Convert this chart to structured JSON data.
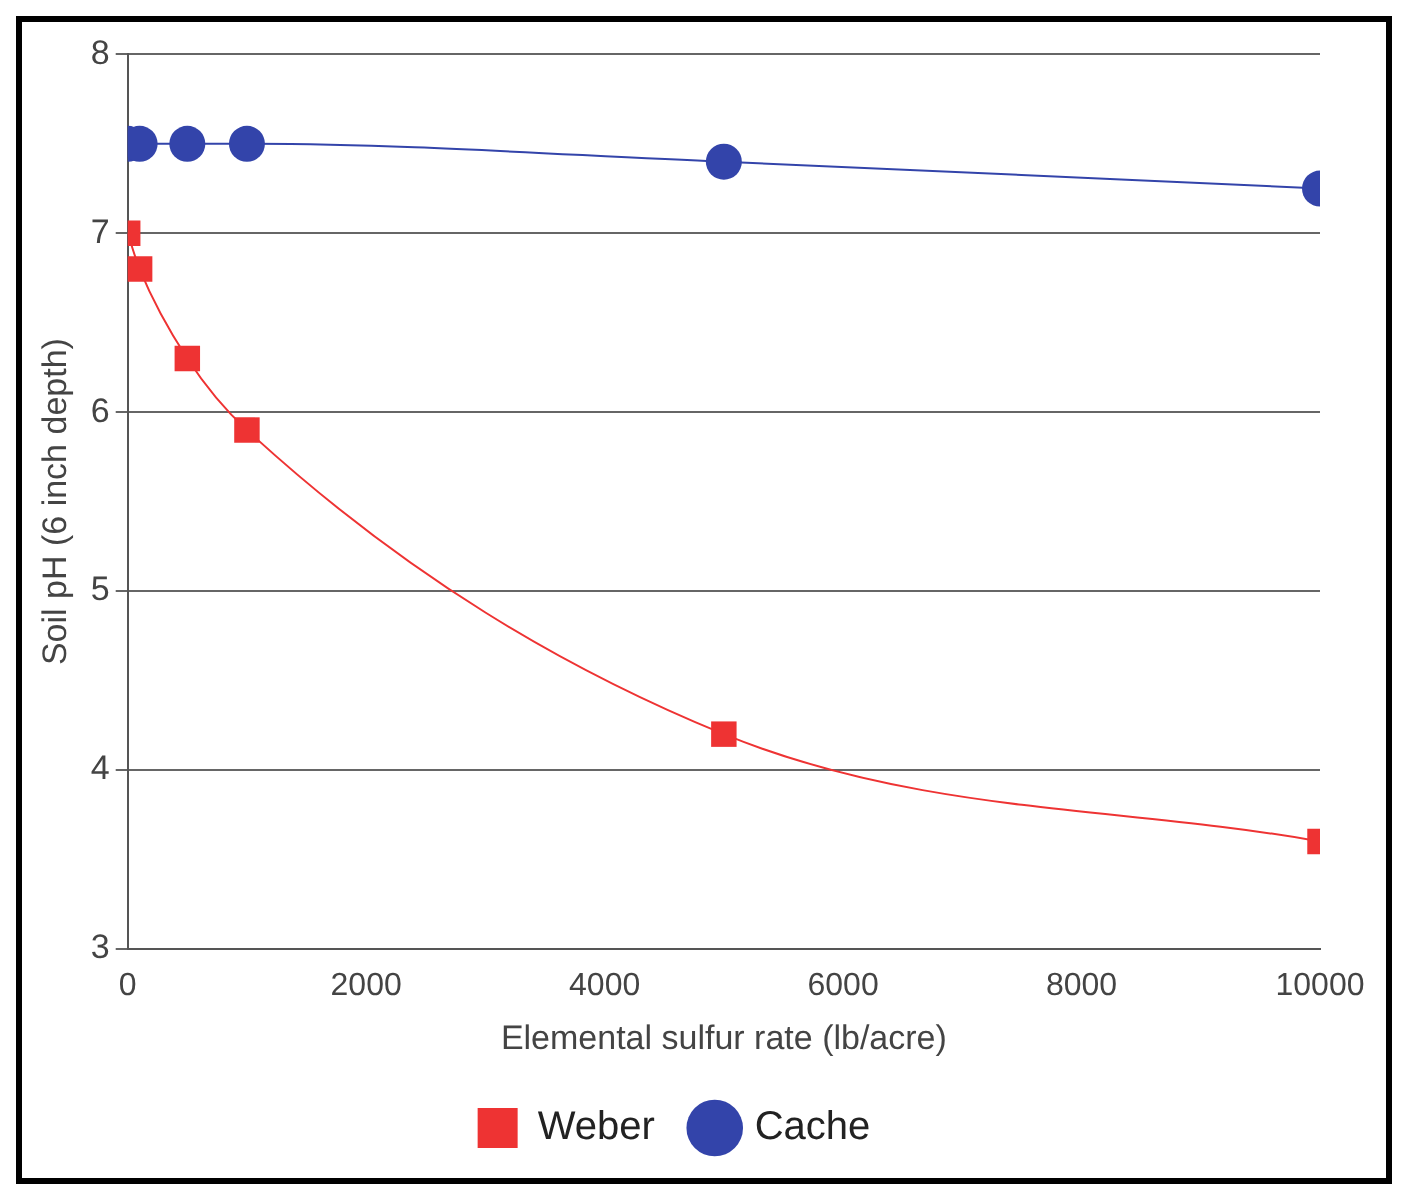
{
  "chart_data": {
    "type": "line",
    "xlabel": "Elemental sulfur rate (lb/acre)",
    "ylabel": "Soil pH (6 inch depth)",
    "xlim": [
      0,
      10000
    ],
    "xticks": [
      0,
      2000,
      4000,
      6000,
      8000,
      10000
    ],
    "ylim": [
      3,
      8
    ],
    "yticks": [
      3,
      4,
      5,
      6,
      7,
      8
    ],
    "grid": "y",
    "legend": "bottom",
    "series": [
      {
        "name": "Weber",
        "color": "#ee3333",
        "marker": "square",
        "x": [
          0,
          100,
          500,
          1000,
          5000,
          10000
        ],
        "values": [
          7.0,
          6.8,
          6.3,
          5.9,
          4.2,
          3.6
        ]
      },
      {
        "name": "Cache",
        "color": "#3344aa",
        "marker": "circle",
        "x": [
          0,
          100,
          500,
          1000,
          5000,
          10000
        ],
        "values": [
          7.5,
          7.5,
          7.5,
          7.5,
          7.4,
          7.25
        ]
      }
    ]
  }
}
